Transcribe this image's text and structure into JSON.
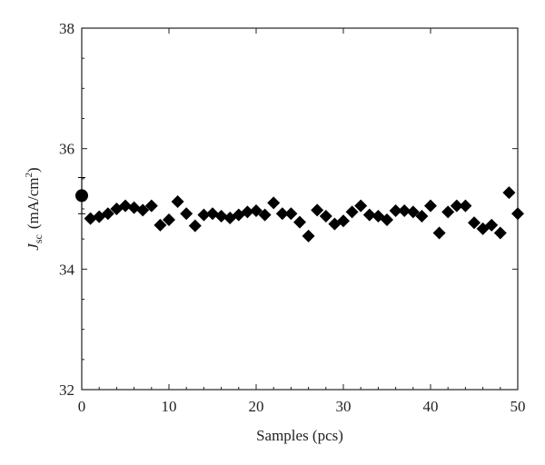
{
  "chart_data": {
    "type": "scatter",
    "xlabel": "Samples (pcs)",
    "ylabel": {
      "symbol": "J",
      "subscript": "sc",
      "unit_prefix": "(mA/cm",
      "unit_sup": "2",
      "unit_suffix": ")"
    },
    "xlim": [
      0,
      50
    ],
    "ylim": [
      32,
      38
    ],
    "xticks": [
      0,
      10,
      20,
      30,
      40,
      50
    ],
    "yticks": [
      32,
      34,
      36,
      38
    ],
    "grid": false,
    "series": [
      {
        "marker": "circle",
        "color": "#000000",
        "points": [
          {
            "x": 0,
            "y": 35.22,
            "yerr": 0.3,
            "xerr": 0.3
          }
        ]
      },
      {
        "marker": "diamond",
        "color": "#000000",
        "points": [
          {
            "x": 1,
            "y": 34.84
          },
          {
            "x": 2,
            "y": 34.87
          },
          {
            "x": 3,
            "y": 34.92
          },
          {
            "x": 4,
            "y": 35.0
          },
          {
            "x": 5,
            "y": 35.05
          },
          {
            "x": 6,
            "y": 35.02
          },
          {
            "x": 7,
            "y": 34.98
          },
          {
            "x": 8,
            "y": 35.05
          },
          {
            "x": 9,
            "y": 34.73
          },
          {
            "x": 10,
            "y": 34.82
          },
          {
            "x": 11,
            "y": 35.12
          },
          {
            "x": 12,
            "y": 34.92
          },
          {
            "x": 13,
            "y": 34.72
          },
          {
            "x": 14,
            "y": 34.9
          },
          {
            "x": 15,
            "y": 34.92
          },
          {
            "x": 16,
            "y": 34.88
          },
          {
            "x": 17,
            "y": 34.85
          },
          {
            "x": 18,
            "y": 34.9
          },
          {
            "x": 19,
            "y": 34.95
          },
          {
            "x": 20,
            "y": 34.97
          },
          {
            "x": 21,
            "y": 34.9
          },
          {
            "x": 22,
            "y": 35.1
          },
          {
            "x": 23,
            "y": 34.92
          },
          {
            "x": 24,
            "y": 34.92
          },
          {
            "x": 25,
            "y": 34.78
          },
          {
            "x": 26,
            "y": 34.55
          },
          {
            "x": 27,
            "y": 34.98
          },
          {
            "x": 28,
            "y": 34.88
          },
          {
            "x": 29,
            "y": 34.75
          },
          {
            "x": 30,
            "y": 34.8
          },
          {
            "x": 31,
            "y": 34.95
          },
          {
            "x": 32,
            "y": 35.05
          },
          {
            "x": 33,
            "y": 34.9
          },
          {
            "x": 34,
            "y": 34.88
          },
          {
            "x": 35,
            "y": 34.82
          },
          {
            "x": 36,
            "y": 34.97
          },
          {
            "x": 37,
            "y": 34.97
          },
          {
            "x": 38,
            "y": 34.95
          },
          {
            "x": 39,
            "y": 34.88
          },
          {
            "x": 40,
            "y": 35.05
          },
          {
            "x": 41,
            "y": 34.6
          },
          {
            "x": 42,
            "y": 34.95
          },
          {
            "x": 43,
            "y": 35.05
          },
          {
            "x": 44,
            "y": 35.05
          },
          {
            "x": 45,
            "y": 34.77
          },
          {
            "x": 46,
            "y": 34.67
          },
          {
            "x": 47,
            "y": 34.73
          },
          {
            "x": 48,
            "y": 34.6
          },
          {
            "x": 49,
            "y": 35.27
          },
          {
            "x": 50,
            "y": 34.92
          }
        ]
      }
    ]
  }
}
